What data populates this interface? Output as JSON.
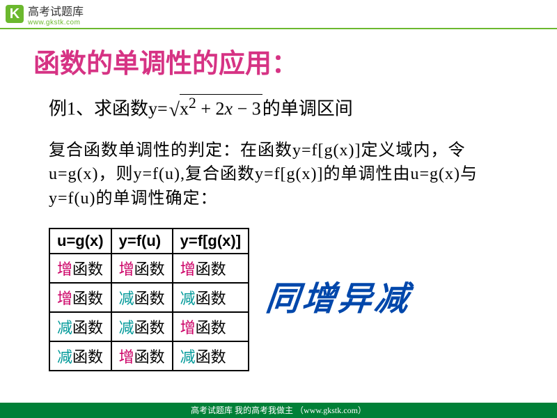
{
  "header": {
    "logo_letter": "K",
    "brand_cn": "高考试题库",
    "brand_url": "www.gkstk.com"
  },
  "title": "函数的单调性的应用：",
  "example": {
    "prefix": "例1、求函数y=",
    "radicand_pre": "x",
    "radicand_sup": "2",
    "radicand_mid": " + 2",
    "radicand_x": "x",
    "radicand_post": " − 3",
    "suffix": "的单调区间"
  },
  "explain": "复合函数单调性的判定：在函数y=f[g(x)]定义域内，令u=g(x)，则y=f(u),复合函数y=f[g(x)]的单调性由u=g(x)与y=f(u)的单调性确定：",
  "table": {
    "headers": [
      "u=g(x)",
      "y=f(u)",
      "y=f[g(x)]"
    ],
    "rows": [
      [
        {
          "t": "增",
          "k": "inc"
        },
        {
          "t": "增",
          "k": "inc"
        },
        {
          "t": "增",
          "k": "inc"
        }
      ],
      [
        {
          "t": "增",
          "k": "inc"
        },
        {
          "t": "减",
          "k": "dec"
        },
        {
          "t": "减",
          "k": "dec"
        }
      ],
      [
        {
          "t": "减",
          "k": "dec"
        },
        {
          "t": "减",
          "k": "dec"
        },
        {
          "t": "增",
          "k": "inc"
        }
      ],
      [
        {
          "t": "减",
          "k": "dec"
        },
        {
          "t": "增",
          "k": "inc"
        },
        {
          "t": "减",
          "k": "dec"
        }
      ]
    ],
    "suffix": "函数"
  },
  "motto": "同增异减",
  "footer": "高考试题库  我的高考我做主 （www.gkstk.com）",
  "colors": {
    "brand_green": "#6bb82e",
    "title_pink": "#d63384",
    "inc_color": "#cc0066",
    "dec_color": "#009999",
    "motto_blue": "#0047ab",
    "footer_green": "#008037"
  }
}
